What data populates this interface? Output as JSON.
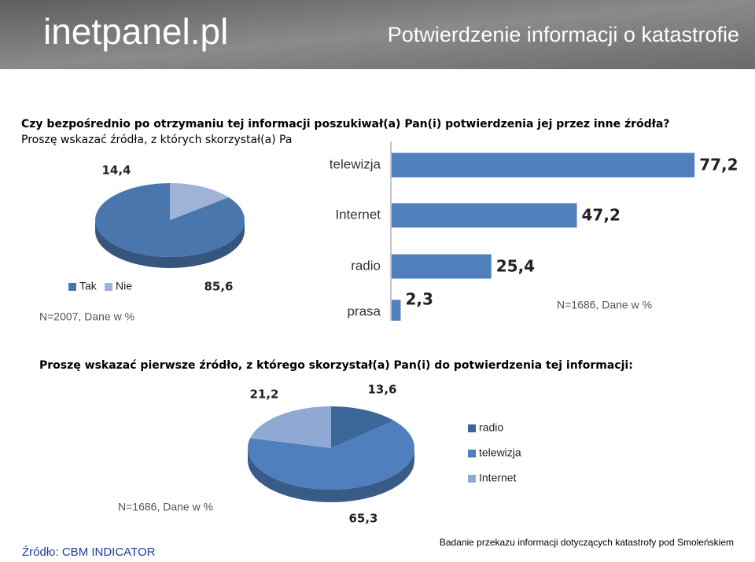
{
  "header": {
    "logo": "inetpanel.pl",
    "title": "Potwierdzenie informacji o katastrofie"
  },
  "question1": "Czy bezpośrednio po otrzymaniu tej informacji poszukiwał(a) Pan(i) potwierdzenia jej przez inne źródła?",
  "question1b": "Proszę wskazać źródła, z których skorzystał(a) Pa",
  "question2": "Proszę wskazać pierwsze źródło, z którego skorzystał(a) Pan(i) do potwierdzenia tej informacji:",
  "source": "Źródło: CBM INDICATOR",
  "footer": "Badanie przekazu informacji dotyczących katastrofy pod Smoleńskiem",
  "chart_data": [
    {
      "type": "pie",
      "categories": [
        "Tak",
        "Nie"
      ],
      "values": [
        85.6,
        14.4
      ],
      "value_labels": [
        "85,6",
        "14,4"
      ],
      "colors": [
        "#4a76ae",
        "#9fb3d6"
      ],
      "note": "N=2007, Dane w %"
    },
    {
      "type": "bar",
      "categories": [
        "telewizja",
        "Internet",
        "radio",
        "prasa"
      ],
      "values": [
        77.2,
        47.2,
        25.4,
        2.3
      ],
      "value_labels": [
        "77,2",
        "47,2",
        "25,4",
        "2,3"
      ],
      "color": "#4f7fbd",
      "note": "N=1686, Dane w %"
    },
    {
      "type": "pie",
      "categories": [
        "radio",
        "telewizja",
        "Internet"
      ],
      "values": [
        13.6,
        65.3,
        21.2
      ],
      "value_labels": [
        "13,6",
        "65,3",
        "21,2"
      ],
      "colors": [
        "#3d6699",
        "#4f7fbd",
        "#8fa9d4"
      ],
      "note": "N=1686, Dane w %"
    }
  ]
}
